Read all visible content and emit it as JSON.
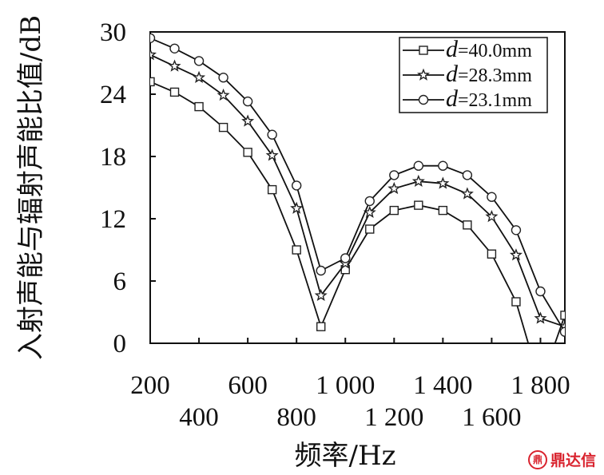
{
  "chart_data": {
    "type": "line",
    "title": "",
    "xlabel": "频率/Hz",
    "ylabel": "入射声能与辐射声能比值/dB",
    "xlim": [
      200,
      1900
    ],
    "ylim": [
      0,
      30
    ],
    "xticks": [
      200,
      400,
      600,
      800,
      1000,
      1200,
      1400,
      1600,
      1800
    ],
    "xtick_labels": [
      "200",
      "400",
      "600",
      "800",
      "1 000",
      "1 200",
      "1 400",
      "1 600",
      "1 800"
    ],
    "yticks": [
      0,
      6,
      12,
      18,
      24,
      30
    ],
    "ytick_labels": [
      "0",
      "6",
      "12",
      "18",
      "24",
      "30"
    ],
    "grid": false,
    "legend_position": "top-right",
    "x": [
      200,
      300,
      400,
      500,
      600,
      700,
      800,
      900,
      1000,
      1100,
      1200,
      1300,
      1400,
      1500,
      1600,
      1700,
      1800,
      1900
    ],
    "series": [
      {
        "label_var": "d",
        "label_value": "=40.0mm",
        "marker": "square",
        "values": [
          25.2,
          24.2,
          22.8,
          20.8,
          18.4,
          14.8,
          9.0,
          1.6,
          7.1,
          11.0,
          12.8,
          13.3,
          12.8,
          11.4,
          8.6,
          4.0,
          -4.0,
          2.7
        ]
      },
      {
        "label_var": "d",
        "label_value": "=28.3mm",
        "marker": "star",
        "values": [
          27.8,
          26.7,
          25.6,
          23.9,
          21.4,
          18.1,
          13.0,
          4.6,
          7.7,
          12.6,
          14.9,
          15.6,
          15.4,
          14.4,
          12.2,
          8.5,
          2.4,
          1.6
        ]
      },
      {
        "label_var": "d",
        "label_value": "=23.1mm",
        "marker": "circle",
        "values": [
          29.4,
          28.4,
          27.2,
          25.6,
          23.3,
          20.1,
          15.2,
          7.0,
          8.2,
          13.7,
          16.2,
          17.1,
          17.1,
          16.2,
          14.1,
          10.9,
          5.0,
          1.1
        ]
      }
    ]
  },
  "watermark": {
    "logo_glyph": "鼎",
    "text": "鼎达信"
  }
}
